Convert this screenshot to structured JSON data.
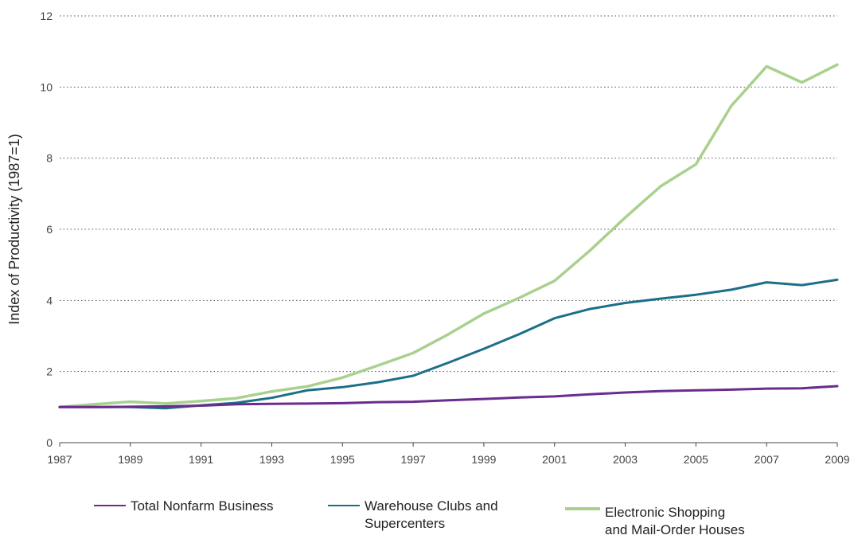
{
  "chart_data": {
    "type": "line",
    "title": "",
    "xlabel": "",
    "ylabel": "Index of Productivity (1987=1)",
    "ylim": [
      0,
      12
    ],
    "yticks": [
      "0",
      "2",
      "4",
      "6",
      "8",
      "10",
      "12"
    ],
    "xlim": [
      1987,
      2009
    ],
    "xticks": [
      "1987",
      "1989",
      "1991",
      "1993",
      "1995",
      "1997",
      "1999",
      "2001",
      "2003",
      "2005",
      "2007",
      "2009"
    ],
    "grid": "horizontal dotted",
    "legend_position": "bottom",
    "x": [
      1987,
      1988,
      1989,
      1990,
      1991,
      1992,
      1993,
      1994,
      1995,
      1996,
      1997,
      1998,
      1999,
      2000,
      2001,
      2002,
      2003,
      2004,
      2005,
      2006,
      2007,
      2008,
      2009
    ],
    "series": [
      {
        "name": "Total Nonfarm Business",
        "color": "#6a2c8e",
        "width": 3,
        "values": [
          1.0,
          1.0,
          1.01,
          1.02,
          1.04,
          1.08,
          1.09,
          1.1,
          1.11,
          1.14,
          1.15,
          1.19,
          1.23,
          1.27,
          1.3,
          1.36,
          1.41,
          1.45,
          1.47,
          1.49,
          1.52,
          1.53,
          1.59
        ]
      },
      {
        "name": "Warehouse Clubs and Supercenters",
        "color": "#1b7088",
        "width": 3,
        "values": [
          1.0,
          1.0,
          1.0,
          0.97,
          1.05,
          1.12,
          1.26,
          1.47,
          1.56,
          1.7,
          1.88,
          2.25,
          2.64,
          3.05,
          3.5,
          3.76,
          3.93,
          4.05,
          4.16,
          4.3,
          4.51,
          4.43,
          4.58
        ]
      },
      {
        "name": "Electronic Shopping\nand Mail-Order Houses",
        "color": "#a9d18e",
        "width": 3.5,
        "values": [
          1.0,
          1.08,
          1.15,
          1.1,
          1.17,
          1.25,
          1.44,
          1.58,
          1.83,
          2.17,
          2.52,
          3.05,
          3.63,
          4.07,
          4.55,
          5.4,
          6.33,
          7.21,
          7.83,
          9.47,
          10.58,
          10.13,
          10.63
        ]
      }
    ]
  },
  "legend": {
    "items": [
      {
        "label": "Total Nonfarm Business",
        "color": "#6a2c8e"
      },
      {
        "label": "Warehouse Clubs and\nSupercenters",
        "color": "#1b7088"
      },
      {
        "label": "Electronic Shopping\nand Mail-Order Houses",
        "color": "#a9d18e"
      }
    ]
  }
}
